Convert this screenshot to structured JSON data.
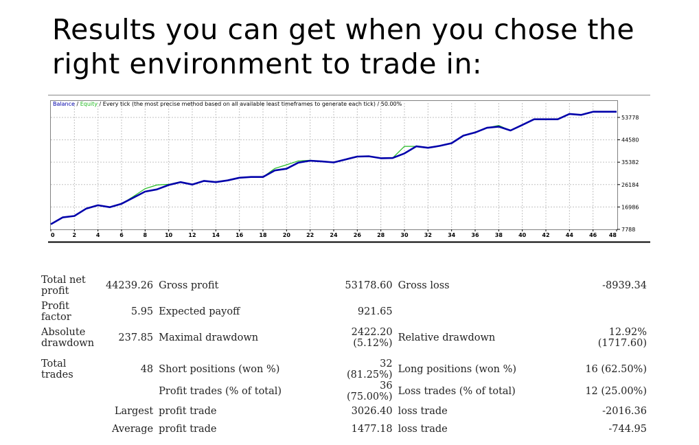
{
  "headline": {
    "line1": "Results you can get when you chose the",
    "line2": "right environment to trade in:"
  },
  "chart_data": {
    "type": "line",
    "legend": {
      "balance": "Balance",
      "sep1": " / ",
      "equity": "Equity",
      "rest": " / Every tick (the most precise method based on all available least timeframes to generate each tick) / 50.00%"
    },
    "colors": {
      "balance": "#0000aa",
      "equity": "#22bb22",
      "grid": "#c0c0c0",
      "frame": "#808080"
    },
    "grid": true,
    "xlim": [
      0,
      48
    ],
    "ylim": [
      7788,
      58000
    ],
    "x_ticks": [
      "0",
      "2",
      "4",
      "6",
      "8",
      "10",
      "12",
      "14",
      "16",
      "18",
      "20",
      "22",
      "24",
      "26",
      "28",
      "30",
      "32",
      "34",
      "36",
      "38",
      "40",
      "42",
      "44",
      "46",
      "48"
    ],
    "y_ticks": [
      53778,
      44580,
      35382,
      26184,
      16986,
      7788
    ],
    "y_tick_labels": [
      "53778",
      "44580",
      "35382",
      "26184",
      "16986",
      "7788"
    ],
    "series": [
      {
        "name": "Balance",
        "x": [
          0,
          1,
          2,
          3,
          4,
          5,
          6,
          7,
          8,
          9,
          10,
          11,
          12,
          13,
          14,
          15,
          16,
          17,
          18,
          19,
          20,
          21,
          22,
          23,
          24,
          25,
          26,
          27,
          28,
          29,
          30,
          31,
          32,
          33,
          34,
          35,
          36,
          37,
          38,
          39,
          40,
          41,
          42,
          43,
          44,
          45,
          46,
          47,
          48
        ],
        "values": [
          9900,
          12700,
          13300,
          16300,
          17700,
          16900,
          18300,
          20800,
          23300,
          24200,
          26000,
          27200,
          26200,
          27700,
          27200,
          27900,
          29000,
          29300,
          29300,
          32000,
          32700,
          35200,
          36000,
          35700,
          35300,
          36500,
          37700,
          37800,
          37000,
          37100,
          39000,
          41900,
          41300,
          42100,
          43200,
          46300,
          47600,
          49500,
          50000,
          48400,
          50700,
          53000,
          53000,
          53000,
          55200,
          54800,
          56100,
          56100,
          56100
        ]
      },
      {
        "name": "Equity",
        "x": [
          0,
          1,
          2,
          3,
          4,
          5,
          6,
          7,
          8,
          9,
          10,
          11,
          12,
          13,
          14,
          15,
          16,
          17,
          18,
          19,
          20,
          21,
          22,
          23,
          24,
          25,
          26,
          27,
          28,
          29,
          30,
          31,
          32,
          33,
          34,
          35,
          36,
          37,
          38,
          39,
          40,
          41,
          42,
          43,
          44,
          45,
          46,
          47,
          48
        ],
        "values": [
          9900,
          12700,
          13300,
          16300,
          17700,
          16900,
          18300,
          21300,
          24500,
          26000,
          26300,
          27300,
          26300,
          27700,
          27200,
          27900,
          29000,
          29300,
          29300,
          32800,
          34300,
          35900,
          36200,
          35700,
          35300,
          36500,
          37700,
          37800,
          37000,
          37100,
          41900,
          41900,
          41300,
          42100,
          43200,
          46300,
          47600,
          49500,
          50500,
          48400,
          50700,
          53000,
          53000,
          53000,
          55200,
          54800,
          56100,
          56100,
          56100
        ]
      }
    ]
  },
  "stats": {
    "total_net_profit": {
      "label": "Total net profit",
      "value": "44239.26"
    },
    "gross_profit": {
      "label": "Gross profit",
      "value": "53178.60"
    },
    "gross_loss": {
      "label": "Gross loss",
      "value": "-8939.34"
    },
    "profit_factor": {
      "label": "Profit factor",
      "value": "5.95"
    },
    "expected_payoff": {
      "label": "Expected payoff",
      "value": "921.65"
    },
    "absolute_drawdown": {
      "label": "Absolute drawdown",
      "value": "237.85"
    },
    "maximal_drawdown": {
      "label": "Maximal drawdown",
      "value": "2422.20",
      "value2": "(5.12%)"
    },
    "relative_drawdown": {
      "label": "Relative drawdown",
      "value": "12.92%",
      "value2": "(1717.60)"
    },
    "total_trades": {
      "label": "Total trades",
      "value": "48"
    },
    "short_positions": {
      "label": "Short positions (won %)",
      "value": "32 (81.25%)"
    },
    "long_positions": {
      "label": "Long positions (won %)",
      "value": "16 (62.50%)"
    },
    "profit_trades": {
      "label": "Profit trades (% of total)",
      "value": "36 (75.00%)"
    },
    "loss_trades": {
      "label": "Loss trades (% of total)",
      "value": "12 (25.00%)"
    },
    "largest": {
      "label": "Largest",
      "profit_label": "profit trade",
      "profit_value": "3026.40",
      "loss_label": "loss trade",
      "loss_value": "-2016.36"
    },
    "average": {
      "label": "Average",
      "profit_label": "profit trade",
      "profit_value": "1477.18",
      "loss_label": "loss trade",
      "loss_value": "-744.95"
    }
  }
}
